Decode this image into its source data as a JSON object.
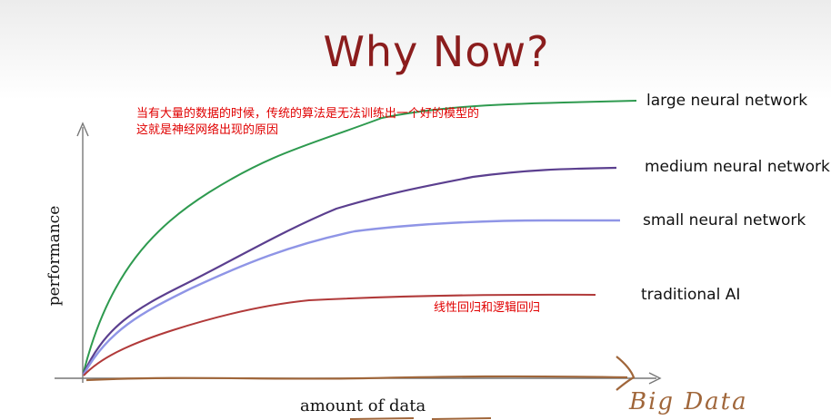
{
  "slide": {
    "title": "Why Now?",
    "annotations": {
      "top": "当有大量的数据的时候，传统的算法是无法训练出一个好的模型的\n这就是神经网络出现的原因",
      "traditional": "线性回归和逻辑回归"
    },
    "handwritten": "Big Data"
  },
  "chart_data": {
    "type": "line",
    "xlabel": "amount of data",
    "ylabel": "performance",
    "series": [
      {
        "name": "large neural network",
        "color": "#2e9a4f"
      },
      {
        "name": "medium neural network",
        "color": "#5b3f8f"
      },
      {
        "name": "small neural network",
        "color": "#8f95e6"
      },
      {
        "name": "traditional AI",
        "color": "#b13a3a"
      }
    ]
  }
}
